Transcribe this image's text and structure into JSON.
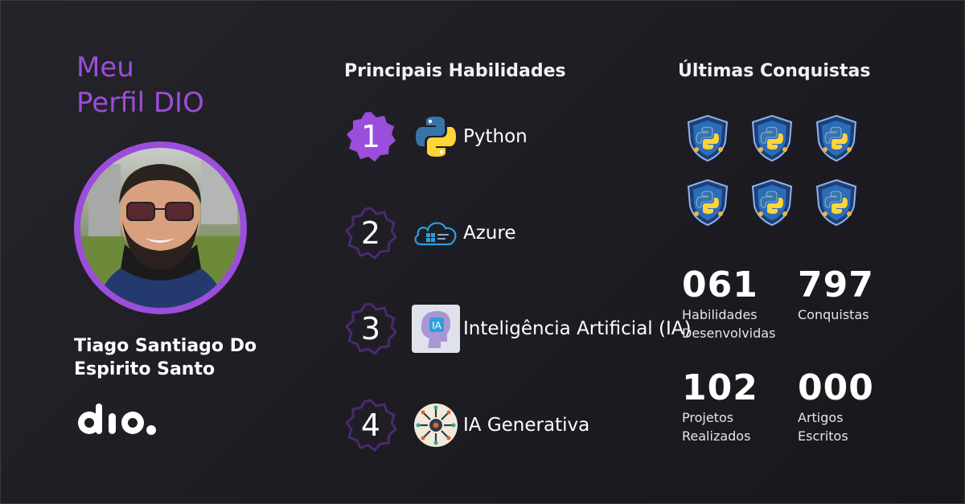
{
  "profile": {
    "title_line1": "Meu",
    "title_line2": "Perfil DIO",
    "name_line1": "Tiago Santiago Do",
    "name_line2": "Espirito Santo",
    "logo": "dio."
  },
  "skills": {
    "title": "Principais Habilidades",
    "items": [
      {
        "rank": "1",
        "label": "Python",
        "icon": "python-icon"
      },
      {
        "rank": "2",
        "label": "Azure",
        "icon": "azure-cloud-icon"
      },
      {
        "rank": "3",
        "label": "Inteligência Artificial (IA)",
        "icon": "ai-head-icon"
      },
      {
        "rank": "4",
        "label": "IA Generativa",
        "icon": "generative-ai-icon"
      }
    ]
  },
  "achievements": {
    "title": "Últimas Conquistas",
    "badges": [
      "python-badge-icon",
      "python-badge-icon",
      "python-badge-icon",
      "python-badge-icon",
      "python-badge-icon",
      "python-badge-icon"
    ]
  },
  "stats": [
    {
      "value": "061",
      "label_line1": "Habilidades",
      "label_line2": "Desenvolvidas"
    },
    {
      "value": "797",
      "label_line1": "Conquistas",
      "label_line2": ""
    },
    {
      "value": "102",
      "label_line1": "Projetos",
      "label_line2": "Realizados"
    },
    {
      "value": "000",
      "label_line1": "Artigos",
      "label_line2": "Escritos"
    }
  ],
  "colors": {
    "accent": "#9b4ddb",
    "background": "#1f1e24",
    "badge_outline": "#3a1f55"
  }
}
